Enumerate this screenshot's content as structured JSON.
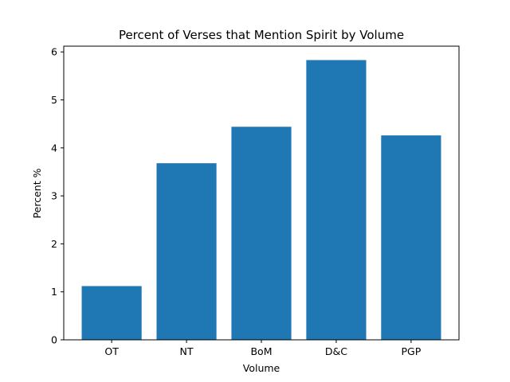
{
  "chart_data": {
    "type": "bar",
    "title": "Percent of Verses that Mention Spirit by Volume",
    "xlabel": "Volume",
    "ylabel": "Percent %",
    "categories": [
      "OT",
      "NT",
      "BoM",
      "D&C",
      "PGP"
    ],
    "values": [
      1.12,
      3.68,
      4.44,
      5.83,
      4.26
    ],
    "ylim": [
      0,
      6.12
    ],
    "yticks": [
      0,
      1,
      2,
      3,
      4,
      5,
      6
    ],
    "bar_color": "#1f77b4",
    "grid": false,
    "legend": "none"
  }
}
